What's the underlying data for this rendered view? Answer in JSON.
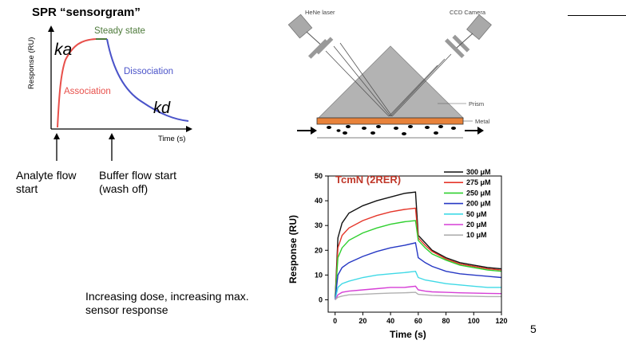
{
  "slide": {
    "title": "SPR “sensorgram”",
    "note_line1": "Increasing dose, increasing max.",
    "note_line2": "sensor response",
    "page_number": "5"
  },
  "sensorgram": {
    "ylabel": "Response (RU)",
    "xlabel": "Time (s)",
    "steady_state": "Steady state",
    "association": "Association",
    "dissociation": "Dissociation",
    "hand_ka": "ka",
    "hand_kd": "kd",
    "analyte_line1": "Analyte flow",
    "analyte_line2": "start",
    "buffer_line1": "Buffer flow start",
    "buffer_line2": "(wash off)",
    "colors": {
      "association": "#e8504b",
      "steady": "#4d7a3a",
      "dissociation": "#4a53c9"
    }
  },
  "setup": {
    "laser": "HeNe laser",
    "camera": "CCD Camera",
    "prism": "Prism",
    "metal": "Metal",
    "colors": {
      "metal": "#e8823a",
      "prism": "#b3b3b3"
    }
  },
  "chart_data": {
    "type": "line",
    "title": "TcmN (2RER)",
    "xlabel": "Time (s)",
    "ylabel": "Response (RU)",
    "xlim": [
      -5,
      120
    ],
    "ylim": [
      -5,
      50
    ],
    "xticks": [
      0,
      20,
      40,
      60,
      80,
      100,
      120
    ],
    "yticks": [
      0,
      10,
      20,
      30,
      40,
      50
    ],
    "legend_position": "top-right",
    "series": [
      {
        "name": "300 μM",
        "color": "#111111",
        "x": [
          0,
          2,
          5,
          10,
          20,
          30,
          40,
          50,
          58,
          60,
          65,
          70,
          80,
          90,
          100,
          110,
          120
        ],
        "y": [
          0,
          25,
          31,
          35,
          38,
          40,
          41.5,
          43,
          43.5,
          26,
          23,
          20,
          17,
          15,
          14,
          13,
          12.5
        ]
      },
      {
        "name": "275 μM",
        "color": "#e5362a",
        "x": [
          0,
          2,
          5,
          10,
          20,
          30,
          40,
          50,
          58,
          60,
          65,
          70,
          80,
          90,
          100,
          110,
          120
        ],
        "y": [
          0,
          21,
          26,
          29,
          32,
          34,
          35.5,
          36.5,
          37,
          25,
          22,
          19.5,
          16.5,
          14.5,
          13.5,
          12.5,
          12
        ]
      },
      {
        "name": "250 μM",
        "color": "#2fd02f",
        "x": [
          0,
          2,
          5,
          10,
          20,
          30,
          40,
          50,
          58,
          60,
          65,
          70,
          80,
          90,
          100,
          110,
          120
        ],
        "y": [
          0,
          17,
          21,
          24,
          27,
          29,
          30.5,
          31.5,
          32,
          24,
          21,
          18.5,
          16,
          14,
          13,
          12,
          11.5
        ]
      },
      {
        "name": "200 μM",
        "color": "#2638c4",
        "x": [
          0,
          2,
          5,
          10,
          20,
          30,
          40,
          50,
          58,
          60,
          65,
          70,
          80,
          90,
          100,
          110,
          120
        ],
        "y": [
          0,
          10,
          13,
          15,
          17.5,
          19.5,
          21,
          22,
          23,
          17,
          15,
          13.5,
          11.5,
          10.5,
          10,
          9.5,
          9
        ]
      },
      {
        "name": "50 μM",
        "color": "#3fd9e6",
        "x": [
          0,
          2,
          5,
          10,
          20,
          30,
          40,
          50,
          58,
          60,
          65,
          70,
          80,
          90,
          100,
          110,
          120
        ],
        "y": [
          0,
          5,
          6.5,
          7.5,
          9,
          10,
          10.5,
          11,
          11.5,
          9,
          8,
          7.5,
          6.5,
          6,
          5.5,
          5,
          5
        ]
      },
      {
        "name": "20 μM",
        "color": "#d63fd6",
        "x": [
          0,
          2,
          5,
          10,
          20,
          30,
          40,
          50,
          58,
          60,
          65,
          70,
          80,
          90,
          100,
          110,
          120
        ],
        "y": [
          0,
          2,
          3,
          3.5,
          4,
          4.5,
          5,
          5,
          5.5,
          4,
          3.5,
          3.2,
          3,
          2.8,
          2.7,
          2.6,
          2.5
        ]
      },
      {
        "name": "10 μM",
        "color": "#b0b0b0",
        "x": [
          0,
          2,
          5,
          10,
          20,
          30,
          40,
          50,
          58,
          60,
          65,
          70,
          80,
          90,
          100,
          110,
          120
        ],
        "y": [
          0,
          1,
          1.5,
          2,
          2.2,
          2.5,
          2.7,
          2.8,
          3,
          2.2,
          2,
          1.8,
          1.6,
          1.5,
          1.4,
          1.3,
          1.3
        ]
      }
    ]
  }
}
